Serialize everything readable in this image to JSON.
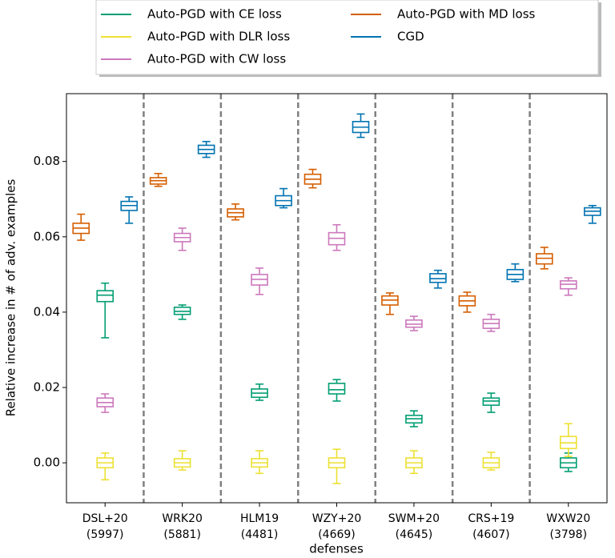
{
  "chart_data": {
    "type": "box",
    "xlabel": "defenses",
    "ylabel": "Relative increase in # of adv. examples",
    "categories": [
      "DSL+20",
      "WRK20",
      "HLM19",
      "WZY+20",
      "SWM+20",
      "CRS+19",
      "WXW20"
    ],
    "category_counts": [
      "(5997)",
      "(5881)",
      "(4481)",
      "(4669)",
      "(4645)",
      "(4607)",
      "(3798)"
    ],
    "ylim": [
      -0.0106,
      0.098
    ],
    "yticks": [
      {
        "value": 0,
        "label": "0.00"
      },
      {
        "value": 0.02,
        "label": "0.02"
      },
      {
        "value": 0.04,
        "label": "0.04"
      },
      {
        "value": 0.06,
        "label": "0.06"
      },
      {
        "value": 0.08,
        "label": "0.08"
      }
    ],
    "legend_position": "top",
    "series": [
      {
        "name": "Auto-PGD with CE loss",
        "color": "#029e73",
        "values": [
          [
            0.0332,
            0.0428,
            0.0445,
            0.0457,
            0.0477
          ],
          [
            0.0381,
            0.0394,
            0.0402,
            0.0413,
            0.0419
          ],
          [
            0.0166,
            0.0174,
            0.0185,
            0.0196,
            0.0209
          ],
          [
            0.0164,
            0.0183,
            0.0194,
            0.0211,
            0.0221
          ],
          [
            0.0096,
            0.0106,
            0.0117,
            0.0126,
            0.0138
          ],
          [
            0.0134,
            0.0153,
            0.0164,
            0.0172,
            0.0185
          ],
          [
            -0.0023,
            -0.0013,
            0,
            0.0013,
            0.0026
          ]
        ]
      },
      {
        "name": "Auto-PGD with DLR loss",
        "color": "#ece133",
        "values": [
          [
            -0.0045,
            -0.0013,
            0,
            0.0013,
            0.0026
          ],
          [
            -0.0019,
            -0.0011,
            0,
            0.0011,
            0.0032
          ],
          [
            -0.0028,
            -0.0011,
            0,
            0.0011,
            0.0032
          ],
          [
            -0.0055,
            -0.0013,
            0,
            0.0013,
            0.0036
          ],
          [
            -0.0028,
            -0.0013,
            0,
            0.0013,
            0.0032
          ],
          [
            -0.0019,
            -0.0013,
            0,
            0.0013,
            0.0028
          ],
          [
            0.0017,
            0.0038,
            0.0053,
            0.007,
            0.0104
          ]
        ]
      },
      {
        "name": "Auto-PGD with CW loss",
        "color": "#cc78bc",
        "values": [
          [
            0.0134,
            0.0149,
            0.016,
            0.0172,
            0.0183
          ],
          [
            0.0564,
            0.0587,
            0.0598,
            0.0609,
            0.0623
          ],
          [
            0.0447,
            0.0472,
            0.0487,
            0.05,
            0.0517
          ],
          [
            0.0564,
            0.0579,
            0.0596,
            0.0611,
            0.0632
          ],
          [
            0.0351,
            0.036,
            0.0368,
            0.0379,
            0.0389
          ],
          [
            0.0349,
            0.0357,
            0.037,
            0.0381,
            0.0394
          ],
          [
            0.0445,
            0.0462,
            0.0474,
            0.0483,
            0.0491
          ]
        ]
      },
      {
        "name": "Auto-PGD with MD loss",
        "color": "#d55e00",
        "values": [
          [
            0.0591,
            0.0609,
            0.0623,
            0.0636,
            0.066
          ],
          [
            0.0734,
            0.074,
            0.0749,
            0.0757,
            0.0768
          ],
          [
            0.0645,
            0.0653,
            0.0664,
            0.0674,
            0.0687
          ],
          [
            0.073,
            0.074,
            0.0753,
            0.0766,
            0.0779
          ],
          [
            0.0394,
            0.0419,
            0.0432,
            0.0443,
            0.0451
          ],
          [
            0.04,
            0.0417,
            0.043,
            0.0443,
            0.0453
          ],
          [
            0.0515,
            0.0528,
            0.0543,
            0.0555,
            0.0572
          ]
        ]
      },
      {
        "name": "CGD",
        "color": "#0173b2",
        "values": [
          [
            0.0636,
            0.067,
            0.0683,
            0.0694,
            0.0706
          ],
          [
            0.0811,
            0.0821,
            0.0832,
            0.0843,
            0.0853
          ],
          [
            0.0677,
            0.0683,
            0.0696,
            0.0709,
            0.0728
          ],
          [
            0.0864,
            0.0877,
            0.0891,
            0.0906,
            0.0926
          ],
          [
            0.0464,
            0.0479,
            0.0489,
            0.0502,
            0.0511
          ],
          [
            0.0481,
            0.0487,
            0.05,
            0.0513,
            0.0528
          ],
          [
            0.0636,
            0.0657,
            0.0668,
            0.0677,
            0.0683
          ]
        ]
      }
    ]
  }
}
